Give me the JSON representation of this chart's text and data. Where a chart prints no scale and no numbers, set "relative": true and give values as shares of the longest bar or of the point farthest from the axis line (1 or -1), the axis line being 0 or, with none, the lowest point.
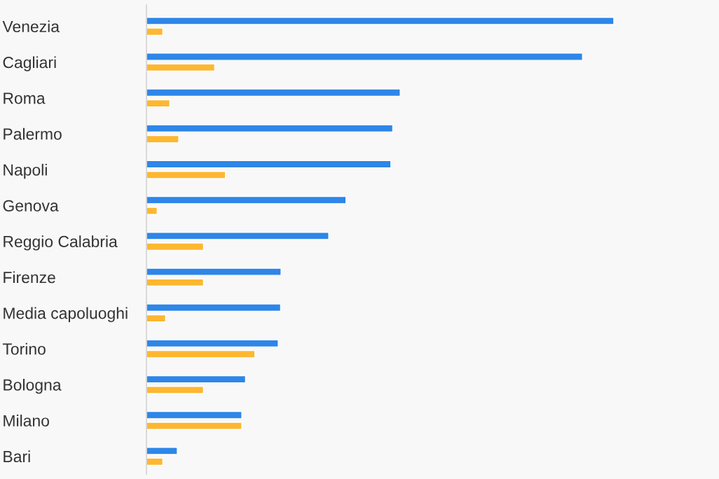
{
  "chart_data": {
    "type": "bar",
    "orientation": "horizontal",
    "relative": true,
    "legend": false,
    "grid": false,
    "categories": [
      "Venezia",
      "Cagliari",
      "Roma",
      "Palermo",
      "Napoli",
      "Genova",
      "Reggio Calabria",
      "Firenze",
      "Media capoluoghi",
      "Torino",
      "Bologna",
      "Milano",
      "Bari"
    ],
    "series": [
      {
        "color": "#2e86e8",
        "values": [
          1,
          0.933,
          0.543,
          0.527,
          0.523,
          0.427,
          0.39,
          0.288,
          0.287,
          0.282,
          0.212,
          0.204,
          0.066
        ]
      },
      {
        "color": "#fdb731",
        "values": [
          0.035,
          0.146,
          0.05,
          0.069,
          0.169,
          0.023,
          0.122,
          0.122,
          0.041,
          0.232,
          0.122,
          0.204,
          0.035
        ]
      }
    ]
  }
}
